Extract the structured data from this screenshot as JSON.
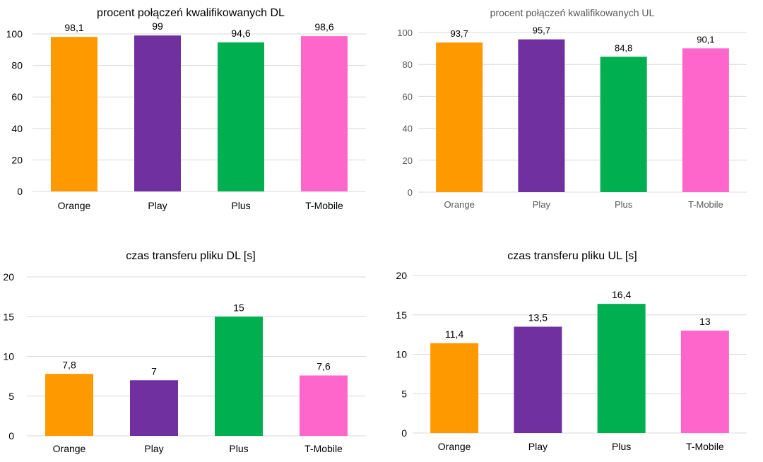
{
  "chart_data": [
    {
      "type": "bar",
      "title": "procent połączeń kwalifikowanych DL",
      "categories": [
        "Orange",
        "Play",
        "Plus",
        "T-Mobile"
      ],
      "values": [
        98.1,
        99,
        94.6,
        98.6
      ],
      "value_labels": [
        "98,1",
        "99",
        "94,6",
        "98,6"
      ],
      "colors": [
        "#ff9900",
        "#7030a0",
        "#00b050",
        "#ff66cc"
      ],
      "yticks": [
        0,
        20,
        40,
        60,
        80,
        100
      ],
      "ylim": [
        0,
        100
      ],
      "grid": true,
      "style": "dark"
    },
    {
      "type": "bar",
      "title": "procent połączeń kwalifikowanych UL",
      "categories": [
        "Orange",
        "Play",
        "Plus",
        "T-Mobile"
      ],
      "values": [
        93.7,
        95.7,
        84.8,
        90.1
      ],
      "value_labels": [
        "93,7",
        "95,7",
        "84,8",
        "90,1"
      ],
      "colors": [
        "#ff9900",
        "#7030a0",
        "#00b050",
        "#ff66cc"
      ],
      "yticks": [
        0,
        20,
        40,
        60,
        80,
        100
      ],
      "ylim": [
        0,
        100
      ],
      "grid": true,
      "style": "light"
    },
    {
      "type": "bar",
      "title": "czas transferu pliku DL  [s]",
      "categories": [
        "Orange",
        "Play",
        "Plus",
        "T-Mobile"
      ],
      "values": [
        7.8,
        7,
        15,
        7.6
      ],
      "value_labels": [
        "7,8",
        "7",
        "15",
        "7,6"
      ],
      "colors": [
        "#ff9900",
        "#7030a0",
        "#00b050",
        "#ff66cc"
      ],
      "yticks": [
        0,
        5,
        10,
        15,
        20
      ],
      "ylim": [
        0,
        20
      ],
      "grid": true,
      "style": "dark"
    },
    {
      "type": "bar",
      "title": "czas transferu pliku UL [s]",
      "categories": [
        "Orange",
        "Play",
        "Plus",
        "T-Mobile"
      ],
      "values": [
        11.4,
        13.5,
        16.4,
        13
      ],
      "value_labels": [
        "11,4",
        "13,5",
        "16,4",
        "13"
      ],
      "colors": [
        "#ff9900",
        "#7030a0",
        "#00b050",
        "#ff66cc"
      ],
      "yticks": [
        0,
        5,
        10,
        15,
        20
      ],
      "ylim": [
        0,
        20
      ],
      "grid": true,
      "style": "dark"
    }
  ]
}
